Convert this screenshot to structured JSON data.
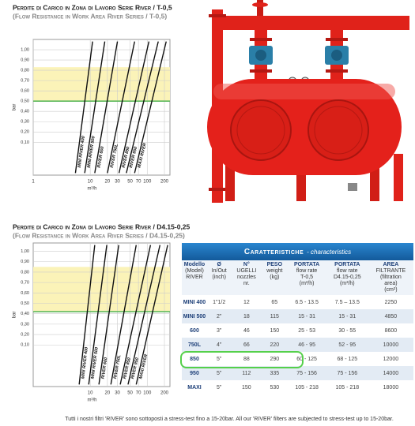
{
  "chart_data": [
    {
      "type": "line",
      "title": "Perdite di Carico in Zona di Lavoro Serie River / T-0,5",
      "subtitle": "(Flow Resistance in Work Area River Series / T-0,5)",
      "y_label": "bar",
      "x_label": "m³/h",
      "log_x": true,
      "grid": true,
      "xlim": [
        1,
        250
      ],
      "ylim": [
        -0.22,
        1.1
      ],
      "xticks": [
        1,
        10,
        20,
        30,
        50,
        70,
        100,
        200
      ],
      "yticks": [
        {
          "value": 1,
          "label": "1,00"
        },
        {
          "value": 0.9,
          "label": "0,90"
        },
        {
          "value": 0.8,
          "label": "0,80"
        },
        {
          "value": 0.7,
          "label": "0,70"
        },
        {
          "value": 0.6,
          "label": "0,60"
        },
        {
          "value": 0.5,
          "label": "0,50"
        },
        {
          "value": 0.4,
          "label": "0,40"
        },
        {
          "value": 0.3,
          "label": "0,30"
        },
        {
          "value": 0.2,
          "label": "0,20"
        },
        {
          "value": 0.1,
          "label": "0,10"
        }
      ],
      "band": [
        0.5,
        0.83
      ],
      "band_color": "#fbf3b8",
      "threshold": 0.5,
      "threshold_color": "#5cb85c",
      "series": [
        {
          "name": "MINI RIVER 400",
          "color": "#111",
          "x": [
            5.5,
            11
          ],
          "values": [
            -0.2,
            1.08
          ]
        },
        {
          "name": "MINI RIVER 500",
          "color": "#111",
          "x": [
            8,
            18
          ],
          "values": [
            -0.2,
            1.08
          ]
        },
        {
          "name": "RIVER 600",
          "color": "#111",
          "x": [
            12,
            30
          ],
          "values": [
            -0.2,
            1.08
          ]
        },
        {
          "name": "RIVER 750L",
          "color": "#111",
          "x": [
            20,
            60
          ],
          "values": [
            -0.2,
            1.08
          ]
        },
        {
          "name": "RIVER 850",
          "color": "#111",
          "x": [
            32,
            107
          ],
          "values": [
            -0.2,
            1.08
          ]
        },
        {
          "name": "RIVER 950",
          "color": "#111",
          "x": [
            43,
            156
          ],
          "values": [
            -0.2,
            1.08
          ]
        },
        {
          "name": "MAXI RIVER",
          "color": "#111",
          "x": [
            60,
            215
          ],
          "values": [
            -0.2,
            1.08
          ]
        }
      ]
    },
    {
      "type": "line",
      "title": "Perdite di Carico in Zona di Lavoro Serie River / D4.15-0,25",
      "subtitle": "(Flow Resistance in Work Area River Series / D4.15-0,25)",
      "y_label": "bar",
      "x_label": "m³/h",
      "log_x": true,
      "grid": true,
      "xlim": [
        1,
        250
      ],
      "ylim": [
        -0.3,
        1.08
      ],
      "xticks": [
        10,
        20,
        30,
        50,
        70,
        100,
        200
      ],
      "yticks": [
        {
          "value": 1,
          "label": "1,00"
        },
        {
          "value": 0.9,
          "label": "0,90"
        },
        {
          "value": 0.8,
          "label": "0,80"
        },
        {
          "value": 0.7,
          "label": "0,70"
        },
        {
          "value": 0.6,
          "label": "0,60"
        },
        {
          "value": 0.5,
          "label": "0,50"
        },
        {
          "value": 0.4,
          "label": "0,40"
        },
        {
          "value": 0.3,
          "label": "0,30"
        },
        {
          "value": 0.2,
          "label": "0,20"
        },
        {
          "value": 0.1,
          "label": "0,10"
        }
      ],
      "band": [
        0.42,
        0.85
      ],
      "band_color": "#fbf3b8",
      "threshold": 0.42,
      "threshold_color": "#5cb85c",
      "series": [
        {
          "name": "MINI RIVER 400",
          "color": "#111",
          "x": [
            6.4,
            12
          ],
          "values": [
            -0.28,
            1.06
          ]
        },
        {
          "name": "MINI RIVER 500",
          "color": "#111",
          "x": [
            9.4,
            19.5
          ],
          "values": [
            -0.28,
            1.06
          ]
        },
        {
          "name": "RIVER 600",
          "color": "#111",
          "x": [
            14.2,
            31.6
          ],
          "values": [
            -0.28,
            1.06
          ]
        },
        {
          "name": "RIVER 750L",
          "color": "#111",
          "x": [
            23,
            64
          ],
          "values": [
            -0.28,
            1.06
          ]
        },
        {
          "name": "RIVER 850",
          "color": "#111",
          "x": [
            33.6,
            114
          ],
          "values": [
            -0.28,
            1.06
          ]
        },
        {
          "name": "RIVER 950",
          "color": "#111",
          "x": [
            46,
            167
          ],
          "values": [
            -0.28,
            1.06
          ]
        },
        {
          "name": "MAXI RIVER",
          "color": "#111",
          "x": [
            64,
            228
          ],
          "values": [
            -0.28,
            1.06
          ]
        }
      ]
    }
  ],
  "table": {
    "title": "Caratteristiche",
    "subtitle": "- characteristics",
    "columns": [
      [
        "Modello",
        "(Model)",
        "RIVER"
      ],
      [
        "Ø",
        "In/Out",
        "(inch)"
      ],
      [
        "N°",
        "UGELLI",
        "nozzles",
        "nr."
      ],
      [
        "PESO",
        "weight",
        "(kg)"
      ],
      [
        "PORTATA",
        "flow rate",
        "T-0,5",
        "(m³/h)"
      ],
      [
        "PORTATA",
        "flow rate",
        "D4.15-0,25",
        "(m³/h)"
      ],
      [
        "AREA",
        "FILTRANTE",
        "(filtration",
        "area)",
        "(cm²)"
      ]
    ],
    "rows": [
      [
        "MINI 400",
        "1\"1/2",
        "12",
        "65",
        "6.5 - 13.5",
        "7.5 – 13.5",
        "2250"
      ],
      [
        "MINI 500",
        "2\"",
        "18",
        "115",
        "15 - 31",
        "15 - 31",
        "4850"
      ],
      [
        "600",
        "3\"",
        "46",
        "150",
        "25 - 53",
        "30 - 55",
        "8600"
      ],
      [
        "750L",
        "4\"",
        "66",
        "220",
        "46 - 95",
        "52 - 95",
        "10000"
      ],
      [
        "850",
        "5\"",
        "88",
        "290",
        "60 - 125",
        "68 - 125",
        "12000"
      ],
      [
        "950",
        "5\"",
        "112",
        "335",
        "75 - 156",
        "75 - 156",
        "14000"
      ],
      [
        "MAXI",
        "5\"",
        "150",
        "530",
        "105 - 218",
        "105 - 218",
        "18000"
      ]
    ],
    "highlight_row": 4,
    "highlight_color": "#55d04a"
  },
  "footer": "Tutti i nostri filtri 'RIVER' sono sottoposti a stress-test fino a 15-20bar. All our 'RIVER' filters are subjected to stress-test up to 15-20bar."
}
